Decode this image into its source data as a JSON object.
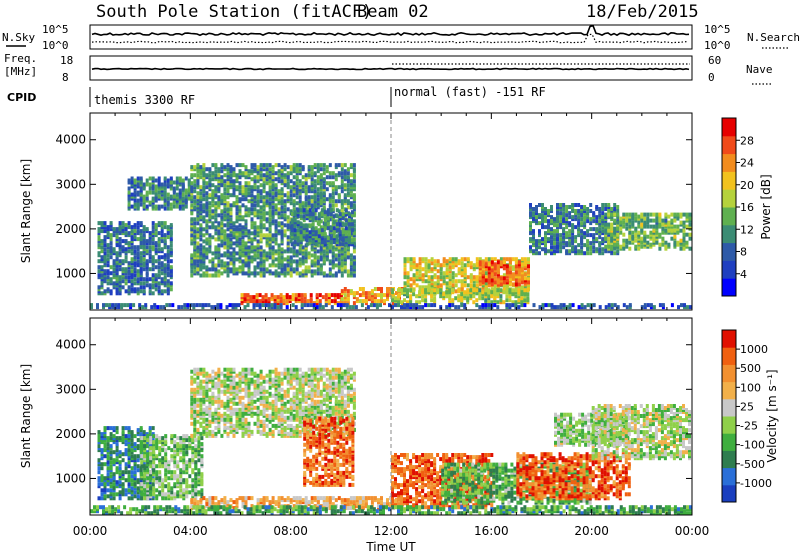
{
  "header": {
    "station": "South Pole Station (fitACF)",
    "beam": "Beam 02",
    "date": "18/Feb/2015"
  },
  "noise_panel": {
    "left_label": "N.Sky",
    "right_label": "N.Search",
    "left_ticks": [
      "10^5",
      "10^0"
    ],
    "right_ticks": [
      "10^5",
      "10^0"
    ]
  },
  "freq_panel": {
    "left_label_1": "Freq.",
    "left_label_2": "[MHz]",
    "right_label": "Nave",
    "left_ticks": [
      "18",
      "8"
    ],
    "right_ticks": [
      "60",
      "0"
    ]
  },
  "cpid": {
    "label": "CPID",
    "modes": [
      "themis 3300 RF",
      "normal (fast) -151 RF"
    ]
  },
  "chart_data": [
    {
      "type": "heatmap",
      "name": "power",
      "ylabel": "Slant Range [km]",
      "y_ticks": [
        "1000",
        "2000",
        "3000",
        "4000"
      ],
      "ylim": [
        180,
        4600
      ],
      "xlim_hours": [
        0,
        24
      ],
      "colorbar_label": "Power [dB]",
      "colorbar_ticks": [
        "28",
        "24",
        "20",
        "16",
        "12",
        "8",
        "4"
      ],
      "colorbar_colors": [
        "#0000ff",
        "#1f3fc0",
        "#2e5aa8",
        "#3b8c74",
        "#5fb050",
        "#b5d23c",
        "#f2c21e",
        "#f28c1e",
        "#f04a1a",
        "#e60000"
      ],
      "blobs": [
        {
          "t0": 0.3,
          "t1": 3.3,
          "r0": 600,
          "r1": 2200,
          "level": 0.25
        },
        {
          "t0": 1.5,
          "t1": 4.0,
          "r0": 2500,
          "r1": 3200,
          "level": 0.3
        },
        {
          "t0": 4.0,
          "t1": 10.5,
          "r0": 1000,
          "r1": 3500,
          "level": 0.35
        },
        {
          "t0": 8.0,
          "t1": 10.5,
          "r0": 1700,
          "r1": 2500,
          "level": 0.3
        },
        {
          "t0": 6.0,
          "t1": 10.0,
          "r0": 380,
          "r1": 600,
          "level": 0.85
        },
        {
          "t0": 10.0,
          "t1": 12.5,
          "r0": 380,
          "r1": 700,
          "level": 0.75
        },
        {
          "t0": 12.5,
          "t1": 17.5,
          "r0": 600,
          "r1": 1400,
          "level": 0.6
        },
        {
          "t0": 15.5,
          "t1": 17.5,
          "r0": 800,
          "r1": 1300,
          "level": 0.85
        },
        {
          "t0": 12.0,
          "t1": 17.5,
          "r0": 400,
          "r1": 700,
          "level": 0.55
        },
        {
          "t0": 17.5,
          "t1": 21.0,
          "r0": 1500,
          "r1": 2600,
          "level": 0.3
        },
        {
          "t0": 20.5,
          "t1": 23.9,
          "r0": 1600,
          "r1": 2400,
          "level": 0.45
        },
        {
          "t0": 0.0,
          "t1": 24.0,
          "r0": 200,
          "r1": 350,
          "level": 0.2
        }
      ]
    },
    {
      "type": "heatmap",
      "name": "velocity",
      "ylabel": "Slant Range [km]",
      "xlabel": "Time UT",
      "x_ticks": [
        "00:00",
        "04:00",
        "08:00",
        "12:00",
        "16:00",
        "20:00",
        "00:00"
      ],
      "y_ticks": [
        "1000",
        "2000",
        "3000",
        "4000"
      ],
      "ylim": [
        180,
        4600
      ],
      "xlim_hours": [
        0,
        24
      ],
      "colorbar_label": "Velocity [m s⁻¹]",
      "colorbar_ticks": [
        "1000",
        "500",
        "100",
        "25",
        "-25",
        "-100",
        "-500",
        "-1000"
      ],
      "colorbar_colors": [
        "#1a3fbf",
        "#2a6fd8",
        "#2e7d4f",
        "#3fae3f",
        "#8fd04a",
        "#c8c8c8",
        "#f2b04a",
        "#f29030",
        "#f06010",
        "#e01000"
      ],
      "blobs": [
        {
          "t0": 0.3,
          "t1": 2.5,
          "r0": 600,
          "r1": 2200,
          "level": 0.2
        },
        {
          "t0": 2.0,
          "t1": 4.5,
          "r0": 600,
          "r1": 2000,
          "level": 0.4
        },
        {
          "t0": 4.0,
          "t1": 10.5,
          "r0": 2000,
          "r1": 3500,
          "level": 0.5
        },
        {
          "t0": 8.5,
          "t1": 10.5,
          "r0": 900,
          "r1": 2400,
          "level": 0.85
        },
        {
          "t0": 4.0,
          "t1": 12.5,
          "r0": 380,
          "r1": 650,
          "level": 0.7
        },
        {
          "t0": 12.0,
          "t1": 16.0,
          "r0": 400,
          "r1": 1600,
          "level": 0.88
        },
        {
          "t0": 14.0,
          "t1": 20.0,
          "r0": 500,
          "r1": 1400,
          "level": 0.35
        },
        {
          "t0": 17.0,
          "t1": 21.5,
          "r0": 600,
          "r1": 1600,
          "level": 0.88
        },
        {
          "t0": 18.5,
          "t1": 21.5,
          "r0": 1800,
          "r1": 2500,
          "level": 0.45
        },
        {
          "t0": 20.0,
          "t1": 23.9,
          "r0": 1500,
          "r1": 2700,
          "level": 0.5
        },
        {
          "t0": 0.0,
          "t1": 24.0,
          "r0": 220,
          "r1": 420,
          "level": 0.3
        }
      ]
    }
  ]
}
